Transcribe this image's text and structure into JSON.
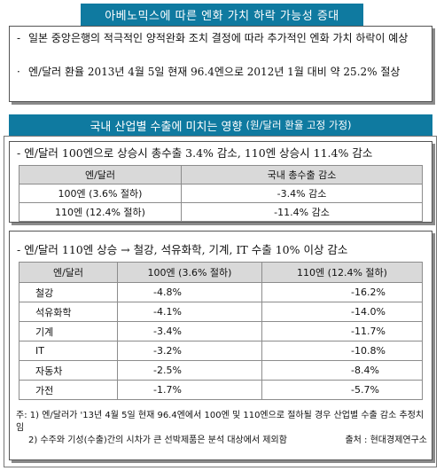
{
  "section1": {
    "title": "아베노믹스에 따른 엔화 가치 하락 가능성 증대",
    "bullets": [
      {
        "marker": "-",
        "text": "일본 중앙은행의 적극적인 양적완화 조치 결정에 따라 추가적인 엔화 가치 하락이 예상"
      },
      {
        "marker": "·",
        "text": "엔/달러 환율 2013년 4월 5일 현재 96.4엔으로 2012년 1월 대비 약 25.2% 절상"
      }
    ]
  },
  "section2": {
    "title": "국내 산업별 수출에 미치는 영향",
    "title_note": "(원/달러 환율 고정 가정)",
    "table1": {
      "heading": "- 엔/달러 100엔으로 상승시 총수출 3.4% 감소, 110엔 상승시 11.4% 감소",
      "columns": [
        "엔/달러",
        "국내 총수출 감소"
      ],
      "rows": [
        [
          "100엔 (3.6% 절하)",
          "-3.4% 감소"
        ],
        [
          "110엔 (12.4% 절하)",
          "-11.4% 감소"
        ]
      ]
    },
    "table2": {
      "heading": "- 엔/달러 110엔 상승 → 철강, 석유화학, 기계, IT 수출 10% 이상 감소",
      "columns": [
        "엔/달러",
        "100엔 (3.6% 절하)",
        "110엔 (12.4% 절하)"
      ],
      "rows": [
        [
          "철강",
          "-4.8%",
          "-16.2%"
        ],
        [
          "석유화학",
          "-4.1%",
          "-14.0%"
        ],
        [
          "기계",
          "-3.4%",
          "-11.7%"
        ],
        [
          "IT",
          "-3.2%",
          "-10.8%"
        ],
        [
          "자동차",
          "-2.5%",
          "-8.4%"
        ],
        [
          "가전",
          "-1.7%",
          "-5.7%"
        ]
      ]
    },
    "notes": [
      "주: 1) 엔/달러가 '13년 4월 5일 현재 96.4엔에서 100엔 및 110엔으로 절하될 경우 산업별 수출 감소 추정치임",
      "2) 수주와 기성(수출)간의 시차가 큰 선박제품은 분석 대상에서 제외함"
    ],
    "source": "출처 : 현대경제연구소"
  }
}
